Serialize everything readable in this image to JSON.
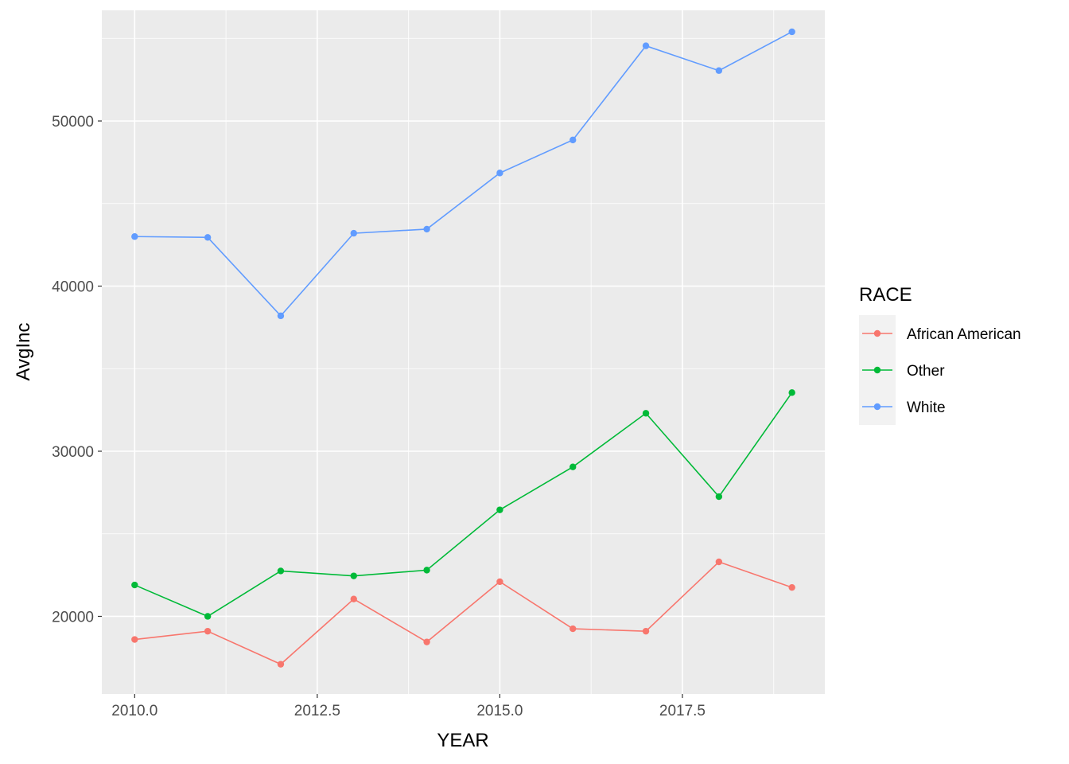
{
  "chart_data": {
    "type": "line",
    "xlabel": "YEAR",
    "ylabel": "AvgInc",
    "x": [
      2010,
      2011,
      2012,
      2013,
      2014,
      2015,
      2016,
      2017,
      2018,
      2019
    ],
    "xlim": [
      2009.55,
      2019.45
    ],
    "ylim": [
      15300,
      56700
    ],
    "x_ticks": [
      2010,
      2012.5,
      2015,
      2017.5
    ],
    "x_tick_labels": [
      "2010.0",
      "2012.5",
      "2015.0",
      "2017.5"
    ],
    "y_ticks": [
      20000,
      30000,
      40000,
      50000
    ],
    "y_tick_labels": [
      "20000",
      "30000",
      "40000",
      "50000"
    ],
    "grid": true,
    "legend": {
      "title": "RACE",
      "placement": "right"
    },
    "series": [
      {
        "name": "African American",
        "color": "#F8766D",
        "values": [
          18600,
          19100,
          17100,
          21050,
          18450,
          22100,
          19250,
          19100,
          23300,
          21750
        ]
      },
      {
        "name": "Other",
        "color": "#00BA38",
        "values": [
          21900,
          20000,
          22750,
          22450,
          22800,
          26450,
          29050,
          32300,
          27250,
          33550
        ]
      },
      {
        "name": "White",
        "color": "#619CFF",
        "values": [
          43000,
          42950,
          38200,
          43200,
          43450,
          46850,
          48850,
          54550,
          53050,
          55400
        ]
      }
    ]
  }
}
